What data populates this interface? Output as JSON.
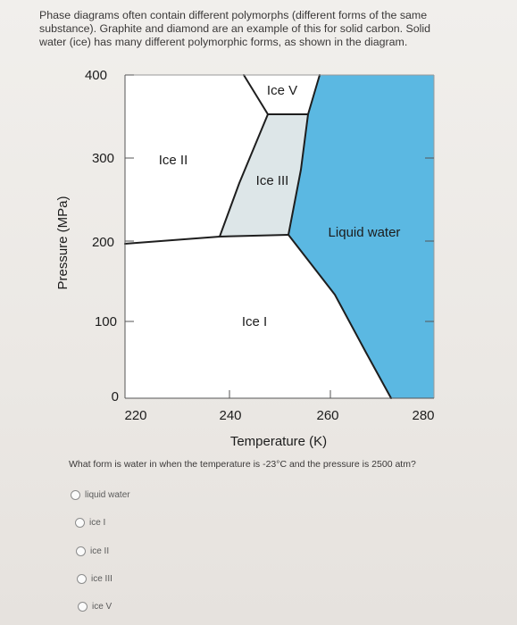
{
  "intro_text": "Phase diagrams often contain different polymorphs (different forms of the same substance). Graphite and diamond are an example of this for solid carbon. Solid water (ice) has many different polymorphic forms, as shown in the diagram.",
  "diagram": {
    "y_ticks": [
      "400",
      "300",
      "200",
      "100",
      "0"
    ],
    "x_ticks": [
      "220",
      "240",
      "260",
      "280"
    ],
    "ylabel": "Pressure (MPa)",
    "xlabel": "Temperature (K)",
    "regions": {
      "ice_v": "Ice V",
      "ice_ii": "Ice II",
      "ice_iii": "Ice III",
      "liquid": "Liquid water",
      "ice_i": "Ice I"
    },
    "colors": {
      "liquid": "#5bb8e2",
      "ice_iii": "#dbe4e6",
      "background": "#ffffff"
    }
  },
  "question": "What form is water in when the temperature is -23°C and the pressure is 2500 atm?",
  "options": [
    "liquid water",
    "ice I",
    "ice II",
    "ice III",
    "ice V"
  ]
}
